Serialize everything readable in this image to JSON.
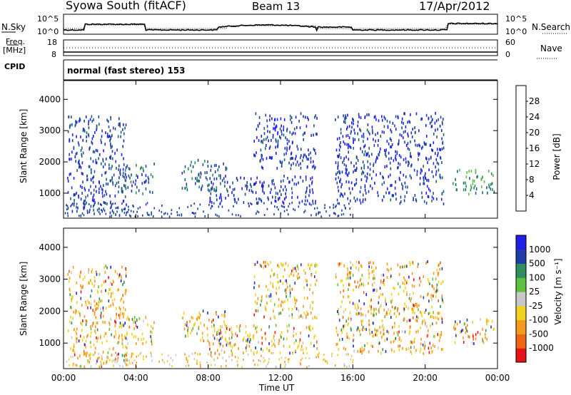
{
  "header": {
    "title": "Syowa South (fitACF)",
    "beam": "Beam 13",
    "date": "17/Apr/2012"
  },
  "noise_panel": {
    "left_label": "N.Sky",
    "right_label": "N.Search",
    "left_ticks": [
      "10^5",
      "10^0"
    ],
    "right_ticks": [
      "10^5",
      "10^0"
    ]
  },
  "freq_panel": {
    "left_label_top": "Freq.",
    "left_label_unit": "[MHz]",
    "right_label": "Nave",
    "left_ticks": [
      "18",
      "8"
    ],
    "right_ticks": [
      "60",
      "0"
    ]
  },
  "cpid": {
    "label": "CPID",
    "value": "normal (fast stereo) 153"
  },
  "colors": {
    "power": [
      "#1f1fe6",
      "#1f3ea8",
      "#1f5f78",
      "#2f8f5f",
      "#5fc23f",
      "#f0d21f",
      "#f39a1f",
      "#f06414",
      "#e61414"
    ],
    "velocity": [
      "#e61414",
      "#f06414",
      "#f39a1f",
      "#f0d21f",
      "#c8c8c8",
      "#5fc23f",
      "#2f8f5f",
      "#1f3ea8",
      "#1f1fe6"
    ]
  },
  "chart_data": [
    {
      "type": "heatmap",
      "name": "power",
      "ylabel": "Slant Range [km]",
      "yticks": [
        "1000",
        "2000",
        "3000",
        "4000"
      ],
      "ylim": [
        200,
        4600
      ],
      "xlim": [
        0,
        24
      ],
      "colorbar_label": "Power [dB]",
      "colorbar_ticks": [
        "4",
        "8",
        "12",
        "16",
        "20",
        "24",
        "28"
      ],
      "colorbar_range": [
        0,
        30
      ],
      "echo_regions": [
        {
          "t": [
            0.2,
            3.5
          ],
          "r": [
            300,
            3500
          ],
          "level": 8
        },
        {
          "t": [
            3.0,
            5.0
          ],
          "r": [
            1000,
            2000
          ],
          "level": 10
        },
        {
          "t": [
            6.5,
            9.0
          ],
          "r": [
            1100,
            2100
          ],
          "level": 12
        },
        {
          "t": [
            8.0,
            14.0
          ],
          "r": [
            700,
            1600
          ],
          "level": 6
        },
        {
          "t": [
            10.5,
            14.0
          ],
          "r": [
            1800,
            3600
          ],
          "level": 6
        },
        {
          "t": [
            15.0,
            21.0
          ],
          "r": [
            700,
            3600
          ],
          "level": 6
        },
        {
          "t": [
            21.5,
            23.8
          ],
          "r": [
            1000,
            1800
          ],
          "level": 16
        }
      ]
    },
    {
      "type": "heatmap",
      "name": "velocity",
      "ylabel": "Slant Range [km]",
      "yticks": [
        "1000",
        "2000",
        "3000",
        "4000"
      ],
      "ylim": [
        200,
        4600
      ],
      "xlim": [
        0,
        24
      ],
      "xlabel": "Time UT",
      "xticks": [
        "00:00",
        "04:00",
        "08:00",
        "12:00",
        "16:00",
        "20:00",
        "00:00"
      ],
      "colorbar_label": "Velocity [m s⁻¹]",
      "colorbar_ticks": [
        "1000",
        "500",
        "100",
        "25",
        "-25",
        "-100",
        "-500",
        "-1000"
      ]
    }
  ]
}
